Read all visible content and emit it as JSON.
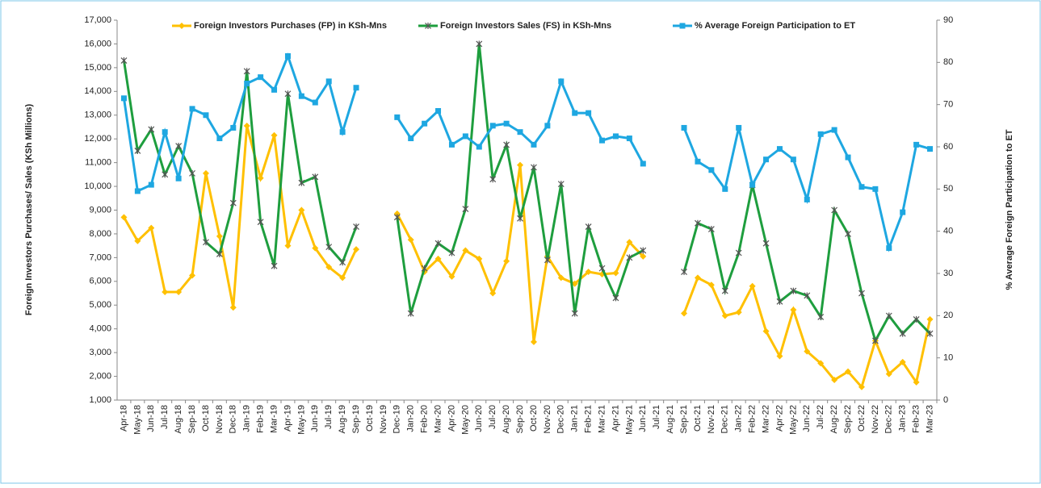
{
  "chart_data": {
    "type": "line",
    "y_axis_label": "Foreign Investors Purchases/ Sales (KSh Millions)",
    "y2_axis_label": "% Average Foreign Participation to ET",
    "categories": [
      "Apr-18",
      "May-18",
      "Jun-18",
      "Jul-18",
      "Aug-18",
      "Sep-18",
      "Oct-18",
      "Nov-18",
      "Dec-18",
      "Jan-19",
      "Feb-19",
      "Mar-19",
      "Apr-19",
      "May-19",
      "Jun-19",
      "Jul-19",
      "Aug-19",
      "Sep-19",
      "Oct-19",
      "Nov-19",
      "Dec-19",
      "Jan-20",
      "Feb-20",
      "Mar-20",
      "Apr-20",
      "May-20",
      "Jun-20",
      "Jul-20",
      "Aug-20",
      "Sep-20",
      "Oct-20",
      "Nov-20",
      "Dec-20",
      "Jan-21",
      "Feb-21",
      "Mar-21",
      "Apr-21",
      "May-21",
      "Jun-21",
      "Jul-21",
      "Aug-21",
      "Sep-21",
      "Oct-21",
      "Nov-21",
      "Dec-21",
      "Jan-22",
      "Feb-22",
      "Mar-22",
      "Apr-22",
      "May-22",
      "Jun-22",
      "Jul-22",
      "Aug-22",
      "Sep-22",
      "Oct-22",
      "Nov-22",
      "Dec-22",
      "Jan-23",
      "Feb-23",
      "Mar-23"
    ],
    "series": [
      {
        "name": "Foreign Investors Purchases (FP) in KSh-Mns",
        "color": "#ffc000",
        "marker": "diamond",
        "values": [
          8700,
          7700,
          8250,
          5550,
          5550,
          6250,
          10550,
          7900,
          4900,
          12550,
          10350,
          12150,
          7500,
          9000,
          7400,
          6600,
          6150,
          7350,
          null,
          null,
          8850,
          7750,
          6400,
          6950,
          6200,
          7300,
          6950,
          5500,
          6850,
          10900,
          3450,
          7050,
          6150,
          5900,
          6400,
          6300,
          6350,
          7650,
          7050,
          null,
          null,
          4650,
          6150,
          5850,
          4550,
          4700,
          5800,
          3900,
          2850,
          4800,
          3050,
          2550,
          1850,
          2200,
          1550,
          3500,
          2100,
          2600,
          1750,
          4400
        ]
      },
      {
        "name": "Foreign Investors Sales (FS) in KSh-Mns",
        "color": "#1e9e3e",
        "marker": "star",
        "values": [
          15300,
          11500,
          12400,
          10500,
          11700,
          10550,
          7650,
          7150,
          9300,
          14850,
          8500,
          6650,
          13900,
          10150,
          10400,
          7450,
          6800,
          8300,
          null,
          null,
          8700,
          4650,
          6550,
          7600,
          7200,
          9050,
          16000,
          10300,
          11750,
          8650,
          10800,
          6900,
          10100,
          4650,
          8300,
          6550,
          5300,
          7000,
          7300,
          null,
          null,
          6400,
          8450,
          8200,
          5600,
          7200,
          10050,
          7600,
          5150,
          5600,
          5400,
          4500,
          9000,
          8000,
          5500,
          3500,
          4550,
          3800,
          4400,
          3800
        ]
      },
      {
        "name": "% Average Foreign Participation to ET",
        "color": "#1ea7e1",
        "marker": "square",
        "axis": "y2",
        "values": [
          71.5,
          49.5,
          51,
          63.5,
          52.5,
          69,
          67.5,
          62,
          64.5,
          75,
          76.5,
          73.5,
          81.5,
          72,
          70.5,
          75.5,
          63.5,
          74,
          null,
          null,
          67,
          62,
          65.5,
          68.5,
          60.5,
          62.5,
          60,
          65,
          65.5,
          63.5,
          60.5,
          65,
          75.5,
          68,
          68,
          61.5,
          62.5,
          62,
          56,
          null,
          null,
          64.5,
          56.5,
          54.5,
          50,
          64.5,
          51,
          57,
          59.5,
          57,
          47.5,
          63,
          64,
          57.5,
          50.5,
          50,
          36,
          44.5,
          60.5,
          59.5
        ]
      }
    ],
    "ylim": [
      1000,
      17000
    ],
    "yticks": [
      {
        "value": 1000,
        "label": "1,000"
      },
      {
        "value": 2000,
        "label": "2,000"
      },
      {
        "value": 3000,
        "label": "3,000"
      },
      {
        "value": 4000,
        "label": "4,000"
      },
      {
        "value": 5000,
        "label": "5,000"
      },
      {
        "value": 6000,
        "label": "6,000"
      },
      {
        "value": 7000,
        "label": "7,000"
      },
      {
        "value": 8000,
        "label": "8,000"
      },
      {
        "value": 9000,
        "label": "9,000"
      },
      {
        "value": 10000,
        "label": "10,000"
      },
      {
        "value": 11000,
        "label": "11,000"
      },
      {
        "value": 12000,
        "label": "12,000"
      },
      {
        "value": 13000,
        "label": "13,000"
      },
      {
        "value": 14000,
        "label": "14,000"
      },
      {
        "value": 15000,
        "label": "15,000"
      },
      {
        "value": 16000,
        "label": "16,000"
      },
      {
        "value": 17000,
        "label": "17,000"
      }
    ],
    "y2lim": [
      0,
      90
    ],
    "y2ticks": [
      0,
      10,
      20,
      30,
      40,
      50,
      60,
      70,
      80,
      90
    ],
    "legend": "top"
  }
}
